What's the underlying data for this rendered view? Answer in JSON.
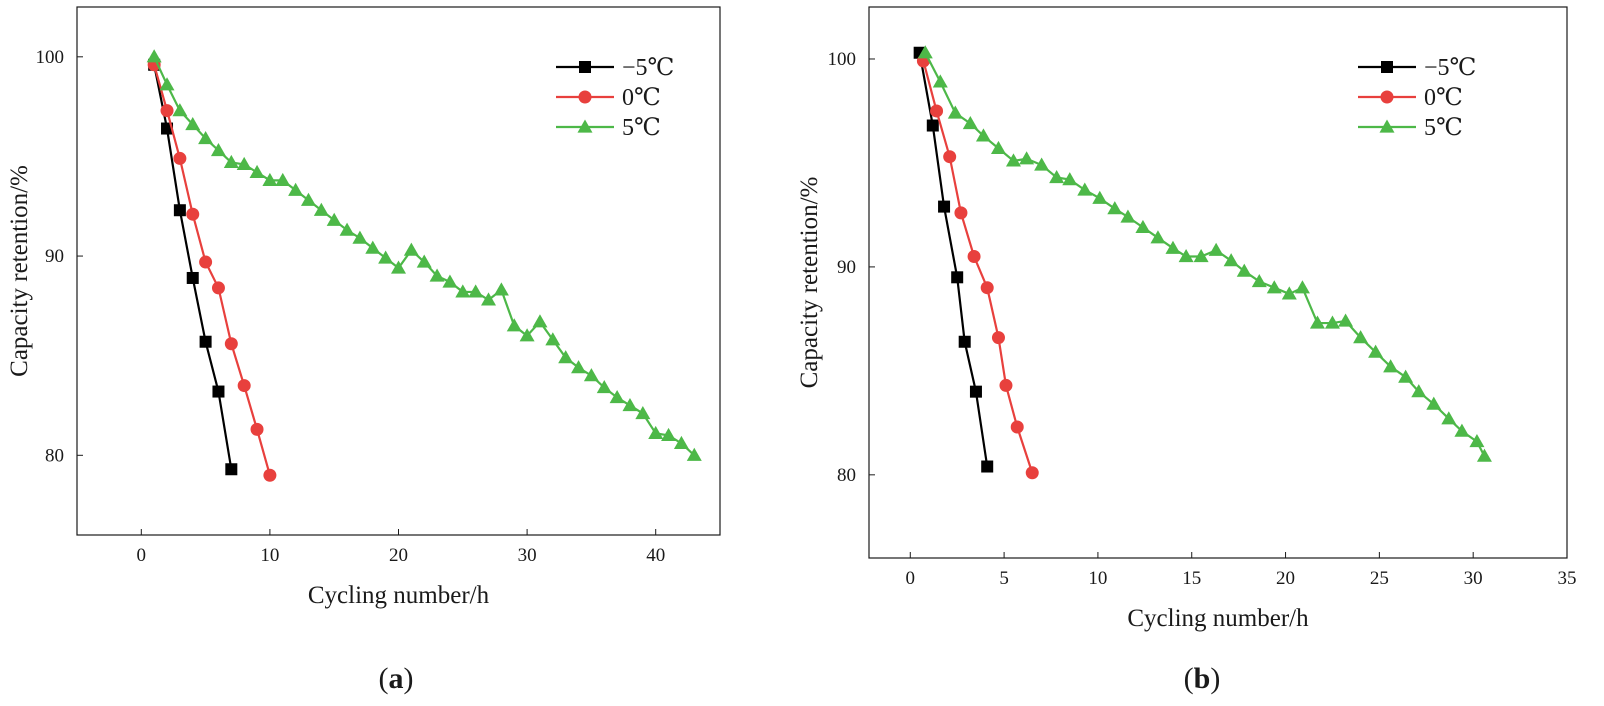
{
  "chart_data": [
    {
      "type": "line",
      "panel_label": "(a)",
      "xlabel": "Cycling number/h",
      "ylabel": "Capacity retention/%",
      "xlim": [
        -5,
        45
      ],
      "ylim": [
        76,
        102.5
      ],
      "xticks": [
        0,
        10,
        20,
        30,
        40
      ],
      "yticks": [
        80,
        90,
        100
      ],
      "legend_position": "top-right",
      "grid": false,
      "series": [
        {
          "name": "−5℃",
          "color": "#000000",
          "marker": "square",
          "x": [
            1,
            2,
            3,
            4,
            5,
            6,
            7
          ],
          "y": [
            99.6,
            96.4,
            92.3,
            88.9,
            85.7,
            83.2,
            79.3
          ]
        },
        {
          "name": "0℃",
          "color": "#e8403d",
          "marker": "circle",
          "x": [
            1,
            2,
            3,
            4,
            5,
            6,
            7,
            8,
            9,
            10
          ],
          "y": [
            99.6,
            97.3,
            94.9,
            92.1,
            89.7,
            88.4,
            85.6,
            83.5,
            81.3,
            79.0
          ]
        },
        {
          "name": "5℃",
          "color": "#4db848",
          "marker": "triangle",
          "x": [
            1,
            2,
            3,
            4,
            5,
            6,
            7,
            8,
            9,
            10,
            11,
            12,
            13,
            14,
            15,
            16,
            17,
            18,
            19,
            20,
            21,
            22,
            23,
            24,
            25,
            26,
            27,
            28,
            29,
            30,
            31,
            32,
            33,
            34,
            35,
            36,
            37,
            38,
            39,
            40,
            41,
            42,
            43
          ],
          "y": [
            100.0,
            98.6,
            97.3,
            96.6,
            95.9,
            95.3,
            94.7,
            94.6,
            94.2,
            93.8,
            93.8,
            93.3,
            92.8,
            92.3,
            91.8,
            91.3,
            90.9,
            90.4,
            89.9,
            89.4,
            90.3,
            89.7,
            89.0,
            88.7,
            88.2,
            88.2,
            87.8,
            88.3,
            86.5,
            86.0,
            86.7,
            85.8,
            84.9,
            84.4,
            84.0,
            83.4,
            82.9,
            82.5,
            82.1,
            81.1,
            81.0,
            80.6,
            80.0
          ]
        }
      ]
    },
    {
      "type": "line",
      "panel_label": "(b)",
      "xlabel": "Cycling number/h",
      "ylabel": "Capacity retention/%",
      "xlim": [
        -2.2,
        35
      ],
      "ylim": [
        76,
        102.5
      ],
      "xticks": [
        0,
        5,
        10,
        15,
        20,
        25,
        30,
        35
      ],
      "yticks": [
        80,
        90,
        100
      ],
      "legend_position": "top-right",
      "grid": false,
      "series": [
        {
          "name": "−5℃",
          "color": "#000000",
          "marker": "square",
          "x": [
            0.5,
            1.2,
            1.8,
            2.5,
            2.9,
            3.5,
            4.1
          ],
          "y": [
            100.3,
            96.8,
            92.9,
            89.5,
            86.4,
            84.0,
            80.4
          ]
        },
        {
          "name": "0℃",
          "color": "#e8403d",
          "marker": "circle",
          "x": [
            0.7,
            1.4,
            2.1,
            2.7,
            3.4,
            4.1,
            4.7,
            5.1,
            5.7,
            6.5
          ],
          "y": [
            99.9,
            97.5,
            95.3,
            92.6,
            90.5,
            89.0,
            86.6,
            84.3,
            82.3,
            80.1
          ]
        },
        {
          "name": "5℃",
          "color": "#4db848",
          "marker": "triangle",
          "x": [
            0.8,
            1.6,
            2.4,
            3.2,
            3.9,
            4.7,
            5.5,
            6.2,
            7.0,
            7.8,
            8.5,
            9.3,
            10.1,
            10.9,
            11.6,
            12.4,
            13.2,
            14.0,
            14.7,
            15.5,
            16.3,
            17.1,
            17.8,
            18.6,
            19.4,
            20.2,
            20.9,
            21.7,
            22.5,
            23.2,
            24.0,
            24.8,
            25.6,
            26.4,
            27.1,
            27.9,
            28.7,
            29.4,
            30.2,
            30.6
          ],
          "y": [
            100.3,
            98.9,
            97.4,
            96.9,
            96.3,
            95.7,
            95.1,
            95.2,
            94.9,
            94.3,
            94.2,
            93.7,
            93.3,
            92.8,
            92.4,
            91.9,
            91.4,
            90.9,
            90.5,
            90.5,
            90.8,
            90.3,
            89.8,
            89.3,
            89.0,
            88.7,
            89.0,
            87.3,
            87.3,
            87.4,
            86.6,
            85.9,
            85.2,
            84.7,
            84.0,
            83.4,
            82.7,
            82.1,
            81.6,
            80.9
          ]
        }
      ]
    }
  ]
}
